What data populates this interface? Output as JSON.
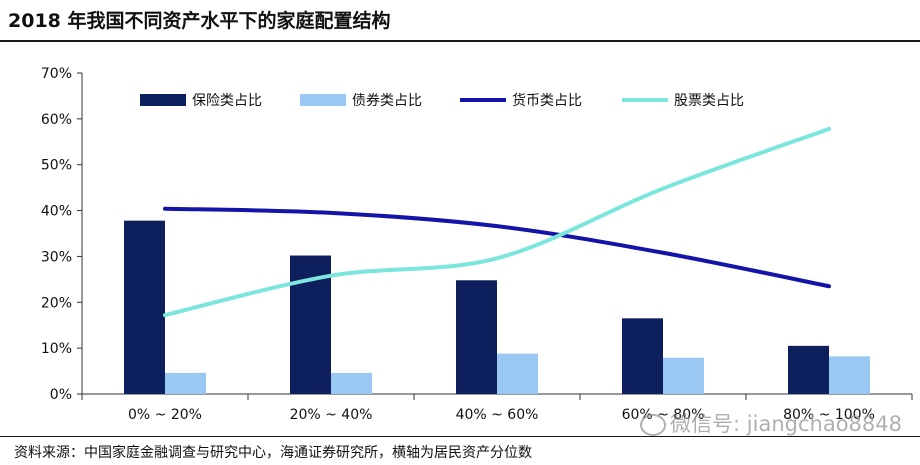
{
  "header": {
    "title": "2018 年我国不同资产水平下的家庭配置结构"
  },
  "footer": {
    "source": "资料来源：中国家庭金融调查与研究中心，海通证券研究所，横轴为居民资产分位数"
  },
  "watermark": {
    "text": "微信号: jiangchao8848"
  },
  "colors": {
    "insurance": "#0d1f5c",
    "bond": "#99c8f2",
    "currency": "#1414a8",
    "stock": "#7ae6dc"
  },
  "chart_data": {
    "type": "bar",
    "title": "2018 年我国不同资产水平下的家庭配置结构",
    "categories": [
      "0% ~ 20%",
      "20% ~ 40%",
      "40% ~ 60%",
      "60% ~ 80%",
      "80% ~ 100%"
    ],
    "ylim": [
      0,
      70
    ],
    "yticks": [
      0,
      10,
      20,
      30,
      40,
      50,
      60,
      70
    ],
    "ytick_labels": [
      "0%",
      "10%",
      "20%",
      "30%",
      "40%",
      "50%",
      "60%",
      "70%"
    ],
    "grid": false,
    "legend_position": "top",
    "series": [
      {
        "name": "保险类占比",
        "kind": "bar",
        "color": "#0d1f5c",
        "values": [
          37.8,
          30.2,
          24.8,
          16.5,
          10.5
        ]
      },
      {
        "name": "债券类占比",
        "kind": "bar",
        "color": "#99c8f2",
        "values": [
          4.6,
          4.6,
          8.8,
          7.9,
          8.2
        ]
      },
      {
        "name": "货币类占比",
        "kind": "line",
        "color": "#1414a8",
        "values": [
          40.4,
          39.5,
          36.6,
          30.8,
          23.5
        ]
      },
      {
        "name": "股票类占比",
        "kind": "line",
        "color": "#7ae6dc",
        "values": [
          17.2,
          25.8,
          29.6,
          44.8,
          57.8
        ]
      }
    ]
  }
}
